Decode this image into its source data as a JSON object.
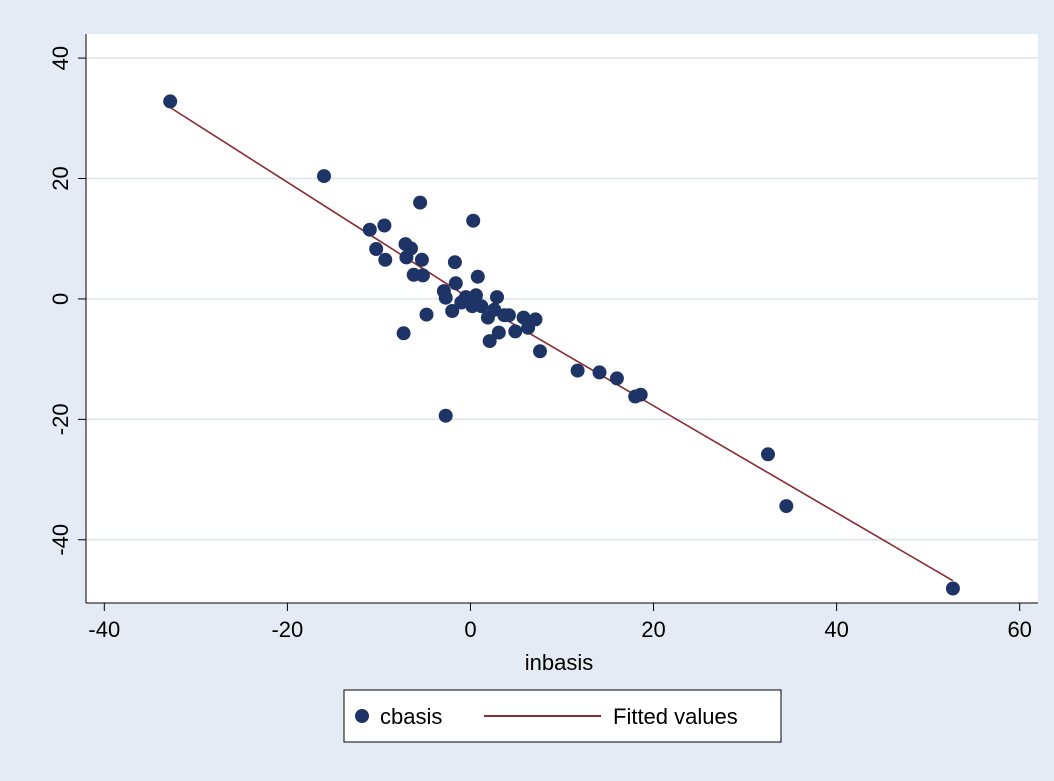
{
  "colors": {
    "outer_background": "#e5ebf4",
    "plot_background": "#ffffff",
    "gridline": "#dde3ee",
    "marker": "#1f3466",
    "fit_line": "#8a2a32"
  },
  "chart_data": {
    "type": "scatter",
    "title": "",
    "xlabel": "inbasis",
    "ylabel": "",
    "xlim": [
      -42,
      62
    ],
    "ylim": [
      -50.5,
      44
    ],
    "xticks": [
      -40,
      -20,
      0,
      20,
      40,
      60
    ],
    "yticks": [
      -40,
      -20,
      0,
      20,
      40
    ],
    "xtick_labels": [
      "-40",
      "-20",
      "0",
      "20",
      "40",
      "60"
    ],
    "ytick_labels": [
      "-40",
      "-20",
      "0",
      "20",
      "40"
    ],
    "grid": "horizontal",
    "legend_position": "bottom",
    "series": [
      {
        "name": "cbasis",
        "kind": "markers",
        "points": [
          [
            -32.8,
            32.8
          ],
          [
            -16,
            20.4
          ],
          [
            -11,
            11.5
          ],
          [
            -9.4,
            12.2
          ],
          [
            -10.3,
            8.3
          ],
          [
            -9.3,
            6.5
          ],
          [
            -7.1,
            9.1
          ],
          [
            -6.5,
            8.4
          ],
          [
            -7.0,
            6.9
          ],
          [
            -5.5,
            16
          ],
          [
            -5.3,
            6.5
          ],
          [
            -6.2,
            4.0
          ],
          [
            -5.2,
            3.9
          ],
          [
            -7.3,
            -5.7
          ],
          [
            -4.8,
            -2.6
          ],
          [
            -2.9,
            1.3
          ],
          [
            -2.7,
            0.2
          ],
          [
            -1.7,
            6.1
          ],
          [
            -1.6,
            2.6
          ],
          [
            0.3,
            13
          ],
          [
            0.8,
            3.7
          ],
          [
            -2.0,
            -2.0
          ],
          [
            -1.0,
            -0.6
          ],
          [
            -0.5,
            0.3
          ],
          [
            0.2,
            -1.2
          ],
          [
            0.6,
            0.6
          ],
          [
            1.2,
            -1.2
          ],
          [
            1.9,
            -3.1
          ],
          [
            2.1,
            -7.0
          ],
          [
            2.6,
            -1.8
          ],
          [
            2.9,
            0.3
          ],
          [
            3.1,
            -5.6
          ],
          [
            3.7,
            -2.7
          ],
          [
            4.2,
            -2.7
          ],
          [
            4.9,
            -5.4
          ],
          [
            5.8,
            -3.1
          ],
          [
            6.3,
            -4.8
          ],
          [
            7.1,
            -3.4
          ],
          [
            7.6,
            -8.7
          ],
          [
            11.7,
            -11.9
          ],
          [
            14.1,
            -12.2
          ],
          [
            16.0,
            -13.2
          ],
          [
            18.0,
            -16.2
          ],
          [
            18.6,
            -15.9
          ],
          [
            32.5,
            -25.8
          ],
          [
            34.5,
            -34.4
          ],
          [
            52.7,
            -48.1
          ],
          [
            -2.7,
            -19.4
          ]
        ]
      },
      {
        "name": "Fitted values",
        "kind": "line",
        "points": [
          [
            -32.8,
            31.8
          ],
          [
            0,
            0
          ],
          [
            52.7,
            -46.8
          ]
        ]
      }
    ]
  }
}
